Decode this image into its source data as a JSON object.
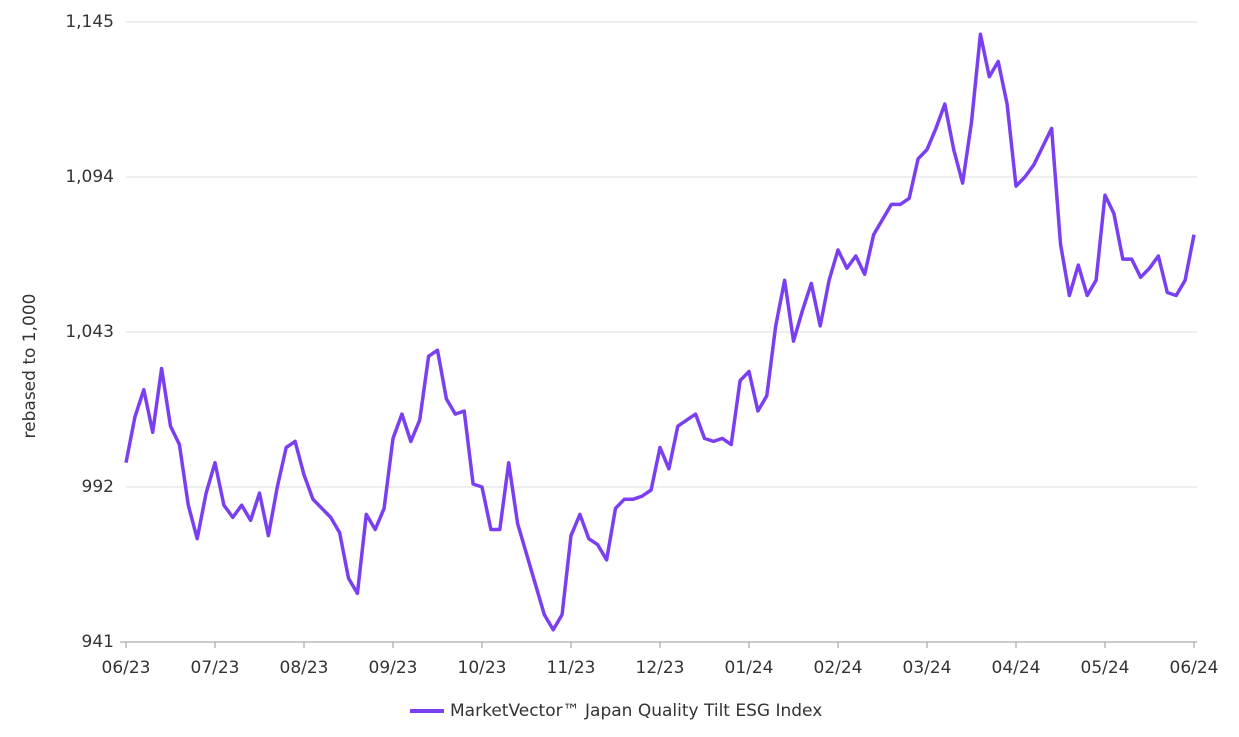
{
  "chart_data": {
    "type": "line",
    "y_label": "rebased to 1,000",
    "categories": [
      "06/23",
      null,
      null,
      null,
      null,
      null,
      null,
      null,
      null,
      null,
      "07/23",
      null,
      null,
      null,
      null,
      null,
      null,
      null,
      null,
      null,
      "08/23",
      null,
      null,
      null,
      null,
      null,
      null,
      null,
      null,
      null,
      "09/23",
      null,
      null,
      null,
      null,
      null,
      null,
      null,
      null,
      null,
      "10/23",
      null,
      null,
      null,
      null,
      null,
      null,
      null,
      null,
      null,
      "11/23",
      null,
      null,
      null,
      null,
      null,
      null,
      null,
      null,
      null,
      "12/23",
      null,
      null,
      null,
      null,
      null,
      null,
      null,
      null,
      null,
      "01/24",
      null,
      null,
      null,
      null,
      null,
      null,
      null,
      null,
      null,
      "02/24",
      null,
      null,
      null,
      null,
      null,
      null,
      null,
      null,
      null,
      "03/24",
      null,
      null,
      null,
      null,
      null,
      null,
      null,
      null,
      null,
      "04/24",
      null,
      null,
      null,
      null,
      null,
      null,
      null,
      null,
      null,
      "05/24",
      null,
      null,
      null,
      null,
      null,
      null,
      null,
      null,
      null,
      "06/24"
    ],
    "series": [
      {
        "name": "MarketVector™ Japan Quality Tilt ESG Index",
        "color": "#7b3ff2",
        "values": [
          1000,
          1015,
          1024,
          1010,
          1031,
          1012,
          1006,
          986,
          975,
          990,
          1000,
          986,
          982,
          986,
          981,
          990,
          976,
          992,
          1005,
          1007,
          996,
          988,
          985,
          982,
          977,
          962,
          957,
          983,
          978,
          985,
          1008,
          1016,
          1007,
          1014,
          1035,
          1037,
          1021,
          1016,
          1017,
          993,
          992,
          978,
          978,
          1000,
          980,
          970,
          960,
          950,
          945,
          950,
          976,
          983,
          975,
          973,
          968,
          985,
          988,
          988,
          989,
          991,
          1005,
          998,
          1012,
          1014,
          1016,
          1008,
          1007,
          1008,
          1006,
          1027,
          1030,
          1017,
          1022,
          1045,
          1060,
          1040,
          1050,
          1059,
          1045,
          1060,
          1070,
          1064,
          1068,
          1062,
          1075,
          1080,
          1085,
          1085,
          1087,
          1100,
          1103,
          1110,
          1118,
          1103,
          1092,
          1112,
          1141,
          1127,
          1132,
          1118,
          1091,
          1094,
          1098,
          1104,
          1110,
          1072,
          1055,
          1065,
          1055,
          1060,
          1088,
          1082,
          1067,
          1067,
          1061,
          1064,
          1068,
          1056,
          1055,
          1060,
          1075
        ]
      }
    ],
    "ylim": [
      941,
      1145
    ],
    "yticks": [
      941,
      992,
      {
        "value": 1043,
        "label": "1,043"
      },
      {
        "value": 1094,
        "label": "1,094"
      },
      {
        "value": 1145,
        "label": "1,145"
      }
    ],
    "grid": true
  }
}
